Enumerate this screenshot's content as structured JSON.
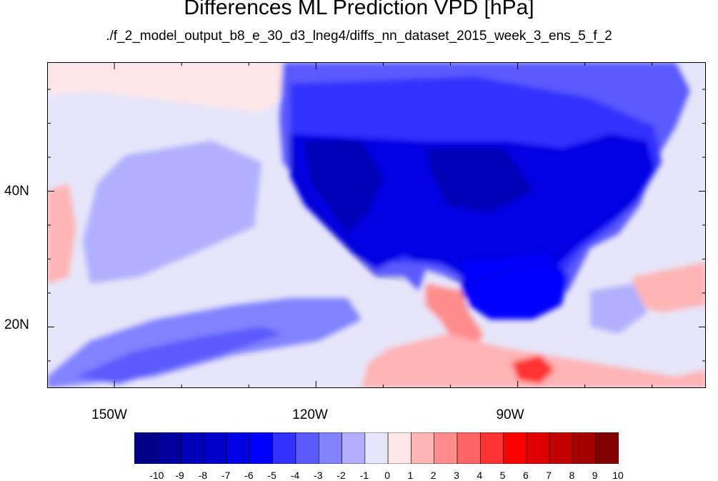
{
  "title": "Differences ML Prediction VPD [hPa]",
  "subtitle": "./f_2_model_output_b8_e_30_d3_lneg4/diffs_nn_dataset_2015_week_3_ens_5_f_2",
  "map": {
    "lon_range": [
      -160,
      -62
    ],
    "lat_range": [
      11,
      59
    ],
    "lon_ticks": [
      {
        "label": "150W",
        "value": -150
      },
      {
        "label": "120W",
        "value": -120
      },
      {
        "label": "90W",
        "value": -90
      }
    ],
    "lat_ticks": [
      {
        "label": "40N",
        "value": 40
      },
      {
        "label": "20N",
        "value": 20
      }
    ],
    "background_color": "#e6e6fa"
  },
  "colorbar": {
    "labels": [
      "-10",
      "-9",
      "-8",
      "-7",
      "-6",
      "-5",
      "-4",
      "-3",
      "-2",
      "-1",
      "0",
      "1",
      "2",
      "3",
      "4",
      "5",
      "6",
      "7",
      "8",
      "9",
      "10"
    ],
    "colors": [
      "#00008b",
      "#00009f",
      "#0000b4",
      "#0000cc",
      "#0000e3",
      "#0000ff",
      "#3232ff",
      "#5a5aff",
      "#8282ff",
      "#b0b0ff",
      "#e6e6fa",
      "#ffe6e6",
      "#ffb4b4",
      "#ff8c8c",
      "#ff6464",
      "#ff3232",
      "#ff0000",
      "#e10000",
      "#c30000",
      "#a50000",
      "#800000"
    ]
  }
}
